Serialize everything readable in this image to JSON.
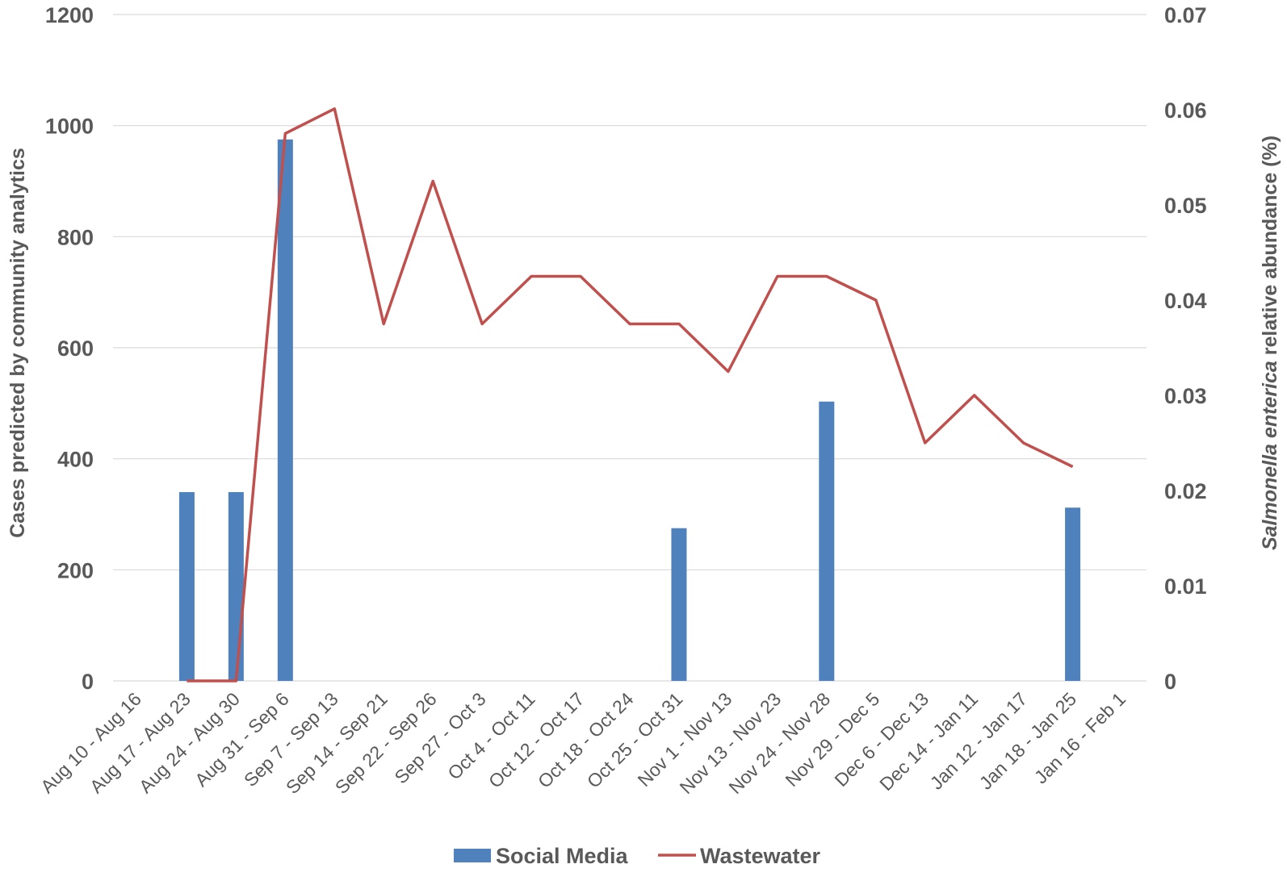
{
  "colors": {
    "bar": "#4f81bd",
    "line": "#c0504d",
    "grid": "#d9d9d9",
    "text": "#595959"
  },
  "chart_data": {
    "type": "bar",
    "categories": [
      "Aug 10 - Aug 16",
      "Aug 17 - Aug 23",
      "Aug 24 - Aug 30",
      "Aug 31 - Sep 6",
      "Sep 7 - Sep 13",
      "Sep 14 - Sep 21",
      "Sep 22 - Sep 26",
      "Sep 27 - Oct 3",
      "Oct 4 - Oct 11",
      "Oct 12 - Oct 17",
      "Oct 18 - Oct 24",
      "Oct 25 - Oct 31",
      "Nov 1 - Nov 13",
      "Nov 13 - Nov 23",
      "Nov 24 - Nov 28",
      "Nov 29 - Dec 5",
      "Dec 6 - Dec 13",
      "Dec 14 - Jan 11",
      "Jan 12 - Jan 17",
      "Jan 18 - Jan 25",
      "Jan 16 - Feb 1"
    ],
    "series": [
      {
        "name": "Social Media",
        "type": "bar",
        "axis": "left",
        "values": [
          0,
          340,
          340,
          975,
          0,
          0,
          0,
          0,
          0,
          0,
          0,
          275,
          0,
          0,
          503,
          0,
          0,
          0,
          0,
          312,
          0
        ]
      },
      {
        "name": "Wastewater",
        "type": "line",
        "axis": "right",
        "values": [
          null,
          0,
          0,
          0.0575,
          0.0601,
          0.0375,
          0.0525,
          0.0375,
          0.0425,
          0.0425,
          0.0375,
          0.0375,
          0.0325,
          0.0425,
          0.0425,
          0.04,
          0.025,
          0.03,
          0.025,
          0.0225,
          null
        ]
      }
    ],
    "ylabel": "Cases predicted by community analytics",
    "ylabel_right_italic": "Salmonella enterica",
    "ylabel_right_rest": " relative abundance (%)",
    "ylim": [
      0,
      1200
    ],
    "yticks": [
      0,
      200,
      400,
      600,
      800,
      1000,
      1200
    ],
    "ylim_right": [
      0,
      0.07
    ],
    "yticks_right": [
      0,
      0.01,
      0.02,
      0.03,
      0.04,
      0.05,
      0.06,
      0.07
    ],
    "ytick_labels_right": [
      "0",
      "0.01",
      "0.02",
      "0.03",
      "0.04",
      "0.05",
      "0.06",
      "0.07"
    ],
    "grid": true,
    "legend_position": "bottom"
  }
}
